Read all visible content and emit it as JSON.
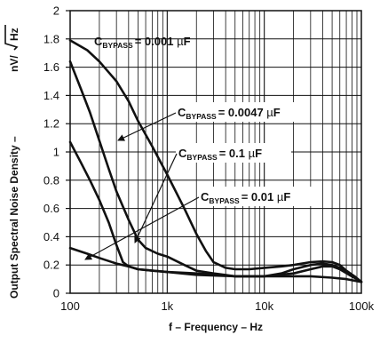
{
  "chart_data": {
    "type": "line",
    "xscale": "log",
    "xlim": [
      100,
      100000
    ],
    "ylim": [
      0,
      2
    ],
    "xlabel": "f – Frequency – Hz",
    "ylabel_main": "Output Spectral Noise Density – ",
    "ylabel_unit_num": "nV/",
    "ylabel_unit_rad": "Hz",
    "xticks": [
      100,
      1000,
      10000,
      100000
    ],
    "xtick_labels": [
      "100",
      "1k",
      "10k",
      "100k"
    ],
    "yticks": [
      0,
      0.2,
      0.4,
      0.6,
      0.8,
      1,
      1.2,
      1.4,
      1.6,
      1.8,
      2
    ],
    "ytick_labels": [
      "0",
      "0.2",
      "0.4",
      "0.6",
      "0.8",
      "1",
      "1.2",
      "1.4",
      "1.6",
      "1.8",
      "2"
    ],
    "grid": true,
    "series": [
      {
        "name": "C_BYPASS = 0.001 µF",
        "points": [
          [
            100,
            1.79
          ],
          [
            150,
            1.72
          ],
          [
            200,
            1.64
          ],
          [
            300,
            1.5
          ],
          [
            400,
            1.36
          ],
          [
            500,
            1.22
          ],
          [
            700,
            1.04
          ],
          [
            1000,
            0.84
          ],
          [
            1500,
            0.6
          ],
          [
            2000,
            0.42
          ],
          [
            2500,
            0.3
          ],
          [
            3000,
            0.22
          ],
          [
            4000,
            0.18
          ],
          [
            5000,
            0.17
          ],
          [
            7000,
            0.17
          ],
          [
            10000,
            0.18
          ],
          [
            15000,
            0.19
          ],
          [
            20000,
            0.2
          ],
          [
            30000,
            0.22
          ],
          [
            40000,
            0.225
          ],
          [
            50000,
            0.22
          ],
          [
            60000,
            0.2
          ],
          [
            70000,
            0.16
          ],
          [
            85000,
            0.12
          ],
          [
            100000,
            0.08
          ]
        ]
      },
      {
        "name": "C_BYPASS = 0.0047 µF",
        "points": [
          [
            100,
            1.64
          ],
          [
            130,
            1.44
          ],
          [
            160,
            1.28
          ],
          [
            200,
            1.08
          ],
          [
            250,
            0.88
          ],
          [
            300,
            0.72
          ],
          [
            400,
            0.52
          ],
          [
            500,
            0.38
          ],
          [
            600,
            0.32
          ],
          [
            800,
            0.28
          ],
          [
            1000,
            0.26
          ],
          [
            1500,
            0.2
          ],
          [
            2000,
            0.16
          ],
          [
            3000,
            0.14
          ],
          [
            5000,
            0.12
          ],
          [
            7000,
            0.12
          ],
          [
            10000,
            0.12
          ],
          [
            15000,
            0.14
          ],
          [
            20000,
            0.17
          ],
          [
            30000,
            0.2
          ],
          [
            40000,
            0.21
          ],
          [
            50000,
            0.2
          ],
          [
            60000,
            0.18
          ],
          [
            70000,
            0.15
          ],
          [
            85000,
            0.11
          ],
          [
            100000,
            0.08
          ]
        ]
      },
      {
        "name": "C_BYPASS = 0.1 µF",
        "points": [
          [
            100,
            1.07
          ],
          [
            130,
            0.92
          ],
          [
            160,
            0.8
          ],
          [
            200,
            0.66
          ],
          [
            250,
            0.5
          ],
          [
            300,
            0.34
          ],
          [
            350,
            0.22
          ],
          [
            400,
            0.19
          ],
          [
            500,
            0.17
          ],
          [
            700,
            0.16
          ],
          [
            1000,
            0.15
          ],
          [
            2000,
            0.13
          ],
          [
            5000,
            0.12
          ],
          [
            10000,
            0.12
          ],
          [
            20000,
            0.14
          ],
          [
            30000,
            0.17
          ],
          [
            40000,
            0.19
          ],
          [
            50000,
            0.19
          ],
          [
            60000,
            0.17
          ],
          [
            75000,
            0.13
          ],
          [
            90000,
            0.1
          ],
          [
            100000,
            0.08
          ]
        ]
      },
      {
        "name": "C_BYPASS = 0.01 µF",
        "points": [
          [
            100,
            0.32
          ],
          [
            150,
            0.28
          ],
          [
            200,
            0.25
          ],
          [
            300,
            0.21
          ],
          [
            400,
            0.19
          ],
          [
            500,
            0.17
          ],
          [
            700,
            0.16
          ],
          [
            1000,
            0.15
          ],
          [
            2000,
            0.14
          ],
          [
            5000,
            0.12
          ],
          [
            10000,
            0.12
          ],
          [
            20000,
            0.12
          ],
          [
            30000,
            0.12
          ],
          [
            50000,
            0.11
          ],
          [
            70000,
            0.1
          ],
          [
            100000,
            0.08
          ]
        ]
      }
    ],
    "annotations": [
      {
        "prefix": "C",
        "sub": "BYPASS",
        "text": "= 0.001 ",
        "mu": "µ",
        "unit": "F",
        "arrow": false
      },
      {
        "prefix": "C",
        "sub": "BYPASS",
        "text": "= 0.0047 ",
        "mu": "µ",
        "unit": "F",
        "arrow": true
      },
      {
        "prefix": "C",
        "sub": "BYPASS",
        "text": "= 0.1 ",
        "mu": "µ",
        "unit": "F",
        "arrow": true
      },
      {
        "prefix": "C",
        "sub": "BYPASS",
        "text": "= 0.01 ",
        "mu": "µ",
        "unit": "F",
        "arrow": true
      }
    ]
  }
}
